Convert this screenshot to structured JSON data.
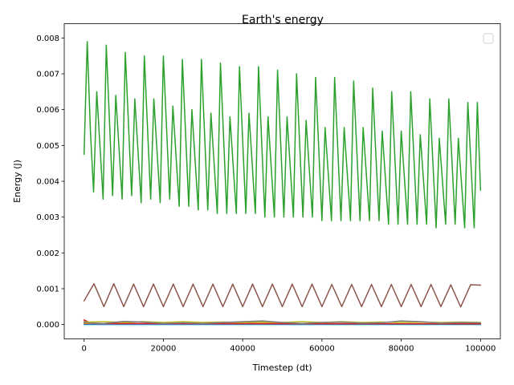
{
  "chart_data": {
    "type": "line",
    "title": "Earth's energy",
    "xlabel": "Timestep (dt)",
    "ylabel": "Energy (J)",
    "xlim": [
      -5000,
      105000
    ],
    "ylim": [
      -0.0004,
      0.0084
    ],
    "xticks": [
      0,
      20000,
      40000,
      60000,
      80000,
      100000
    ],
    "xtick_labels": [
      "0",
      "20000",
      "40000",
      "60000",
      "80000",
      "100000"
    ],
    "yticks": [
      0.0,
      0.001,
      0.002,
      0.003,
      0.004,
      0.005,
      0.006,
      0.007,
      0.008
    ],
    "ytick_labels": [
      "0.000",
      "0.001",
      "0.002",
      "0.003",
      "0.004",
      "0.005",
      "0.006",
      "0.007",
      "0.008"
    ],
    "grid": false,
    "legend": "top-right",
    "series": [
      {
        "color": "#2ca02c",
        "x": [
          0,
          800,
          1600,
          2400,
          3200,
          4800,
          5600,
          7200,
          8000,
          9600,
          10400,
          12000,
          12800,
          14400,
          15200,
          16800,
          17600,
          19200,
          20000,
          21600,
          22400,
          24000,
          24800,
          26400,
          27200,
          28800,
          29600,
          31200,
          32000,
          33600,
          34400,
          36000,
          36800,
          38400,
          39200,
          40800,
          41600,
          43200,
          44000,
          45600,
          46400,
          48000,
          48800,
          50400,
          51200,
          52800,
          53600,
          55200,
          56000,
          57600,
          58400,
          60000,
          60800,
          62400,
          63200,
          64800,
          65600,
          67200,
          68000,
          69600,
          70400,
          72000,
          72800,
          74400,
          75200,
          76800,
          77600,
          79200,
          80000,
          81600,
          82400,
          84000,
          84800,
          86400,
          87200,
          88800,
          89600,
          91200,
          92000,
          93600,
          94400,
          96000,
          96800,
          98400,
          99200,
          100000
        ],
        "y": [
          0.00475,
          0.0079,
          0.0054,
          0.0037,
          0.0065,
          0.0035,
          0.0078,
          0.0036,
          0.0064,
          0.0035,
          0.0076,
          0.0036,
          0.0063,
          0.0034,
          0.0075,
          0.0035,
          0.0063,
          0.0034,
          0.0075,
          0.0035,
          0.0061,
          0.0033,
          0.0074,
          0.0033,
          0.006,
          0.0032,
          0.0074,
          0.0032,
          0.0059,
          0.0031,
          0.0073,
          0.0031,
          0.0058,
          0.0031,
          0.0072,
          0.0031,
          0.0059,
          0.0031,
          0.0072,
          0.003,
          0.0058,
          0.003,
          0.0071,
          0.003,
          0.0058,
          0.003,
          0.007,
          0.003,
          0.0057,
          0.003,
          0.0069,
          0.0029,
          0.0055,
          0.0029,
          0.0069,
          0.0029,
          0.0055,
          0.0029,
          0.0068,
          0.0029,
          0.0055,
          0.0029,
          0.0066,
          0.0029,
          0.0054,
          0.0028,
          0.0065,
          0.0028,
          0.0054,
          0.0028,
          0.0065,
          0.0028,
          0.0053,
          0.0028,
          0.0063,
          0.0027,
          0.0052,
          0.0028,
          0.0063,
          0.0028,
          0.0052,
          0.0027,
          0.0062,
          0.0027,
          0.0062,
          0.00375
        ]
      },
      {
        "color": "#8c564b",
        "x": [
          0,
          2500,
          5000,
          7500,
          10000,
          12500,
          15000,
          17500,
          20000,
          22500,
          25000,
          27500,
          30000,
          32500,
          35000,
          37500,
          40000,
          42500,
          45000,
          47500,
          50000,
          52500,
          55000,
          57500,
          60000,
          62500,
          65000,
          67500,
          70000,
          72500,
          75000,
          77500,
          80000,
          82500,
          85000,
          87500,
          90000,
          92500,
          95000,
          97500,
          100000
        ],
        "y": [
          0.00066,
          0.00114,
          0.0005,
          0.00114,
          0.0005,
          0.00113,
          0.0005,
          0.00113,
          0.0005,
          0.00113,
          0.0005,
          0.00113,
          0.0005,
          0.00113,
          0.0005,
          0.00113,
          0.0005,
          0.00113,
          0.0005,
          0.00113,
          0.0005,
          0.00113,
          0.0005,
          0.00113,
          0.0005,
          0.00112,
          0.0005,
          0.00112,
          0.0005,
          0.00112,
          0.0005,
          0.00112,
          0.0005,
          0.00112,
          0.0005,
          0.00112,
          0.0005,
          0.00111,
          0.00049,
          0.00111,
          0.0011
        ]
      },
      {
        "color": "#7f7f7f",
        "x": [
          0,
          5000,
          10000,
          15000,
          20000,
          25000,
          30000,
          35000,
          40000,
          45000,
          50000,
          55000,
          60000,
          65000,
          70000,
          75000,
          80000,
          85000,
          90000,
          95000,
          100000
        ],
        "y": [
          5e-05,
          3e-05,
          9e-05,
          7e-05,
          3e-05,
          5e-05,
          3e-05,
          6e-05,
          8e-05,
          0.0001,
          6e-05,
          3e-05,
          6e-05,
          7e-05,
          4e-05,
          5e-05,
          0.0001,
          8e-05,
          4e-05,
          6e-05,
          5e-05
        ]
      },
      {
        "color": "#bcbd22",
        "x": [
          0,
          5000,
          10000,
          15000,
          20000,
          25000,
          30000,
          35000,
          40000,
          45000,
          50000,
          55000,
          60000,
          65000,
          70000,
          75000,
          80000,
          85000,
          90000,
          95000,
          100000
        ],
        "y": [
          7e-05,
          8e-05,
          6e-05,
          8e-05,
          6e-05,
          8e-05,
          6e-05,
          7e-05,
          6e-05,
          7e-05,
          6e-05,
          8e-05,
          6e-05,
          8e-05,
          6e-05,
          7e-05,
          6e-05,
          7e-05,
          6e-05,
          7e-05,
          6e-05
        ]
      },
      {
        "color": "#d62728",
        "x": [
          0,
          1500,
          3000,
          100000
        ],
        "y": [
          0.00013,
          5e-05,
          3e-05,
          2e-05
        ]
      },
      {
        "color": "#9467bd",
        "x": [
          0,
          2000,
          4000,
          100000
        ],
        "y": [
          0.0001,
          3e-05,
          2e-05,
          2e-05
        ]
      },
      {
        "color": "#ff7f0e",
        "x": [
          0,
          25000,
          50000,
          75000,
          100000
        ],
        "y": [
          3e-05,
          2e-05,
          3e-05,
          2e-05,
          3e-05
        ]
      },
      {
        "color": "#1f77b4",
        "x": [
          0,
          50000,
          100000
        ],
        "y": [
          1e-05,
          1e-05,
          1e-05
        ]
      },
      {
        "color": "#17becf",
        "x": [
          0,
          50000,
          100000
        ],
        "y": [
          0.0,
          0.0,
          0.0
        ]
      }
    ]
  }
}
